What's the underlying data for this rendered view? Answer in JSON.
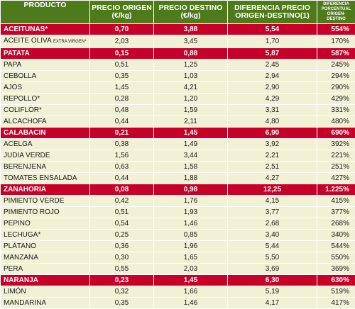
{
  "columns": {
    "producto": "PRODUCTO",
    "precio_origen": "PRECIO ORIGEN (€/kg)",
    "precio_destino": "PRECIO DESTINO (€/kg)",
    "diferencia": "DIFERENCIA PRECIO ORIGEN-DESTINO(1)",
    "diferencia_pct": "DIFERENCIA PORCENTUAL ORIGEN-DESTINO"
  },
  "colors": {
    "header_bg": "#4f7a1b",
    "group_row_bg": "#c7002a",
    "row_bg": "#f1f1d6"
  },
  "rows": [
    {
      "type": "group",
      "producto": "ACEITUNAS*",
      "origen": "0,70",
      "destino": "3,88",
      "diferencia": "5,54",
      "pct": "554%"
    },
    {
      "type": "normal",
      "producto": "ACEITE OLIVA",
      "producto_sub": "EXTRA VIRGEN*",
      "origen": "2,03",
      "destino": "3,45",
      "diferencia": "1,70",
      "pct": "170%"
    },
    {
      "type": "group",
      "producto": "PATATA",
      "origen": "0,15",
      "destino": "0,88",
      "diferencia": "5,87",
      "pct": "587%"
    },
    {
      "type": "normal",
      "producto": "PAPA",
      "origen": "0,51",
      "destino": "1,25",
      "diferencia": "2,45",
      "pct": "245%"
    },
    {
      "type": "normal",
      "producto": "CEBOLLA",
      "origen": "0,35",
      "destino": "1,03",
      "diferencia": "2,94",
      "pct": "294%"
    },
    {
      "type": "normal",
      "producto": "AJOS",
      "origen": "1,45",
      "destino": "4,21",
      "diferencia": "2,90",
      "pct": "290%"
    },
    {
      "type": "normal",
      "producto": "REPOLLO*",
      "origen": "0,28",
      "destino": "1,20",
      "diferencia": "4,29",
      "pct": "429%"
    },
    {
      "type": "normal",
      "producto": "COLIFLOR*",
      "origen": "0,48",
      "destino": "1,59",
      "diferencia": "3,31",
      "pct": "331%"
    },
    {
      "type": "normal",
      "producto": "ALCACHOFA",
      "origen": "0,44",
      "destino": "2,11",
      "diferencia": "4,80",
      "pct": "480%"
    },
    {
      "type": "group",
      "producto": "CALABACIN",
      "origen": "0,21",
      "destino": "1,45",
      "diferencia": "6,90",
      "pct": "690%"
    },
    {
      "type": "normal",
      "producto": "ACELGA",
      "origen": "0,38",
      "destino": "1,49",
      "diferencia": "3,92",
      "pct": "392%"
    },
    {
      "type": "normal",
      "producto": "JUDIA VERDE",
      "origen": "1,56",
      "destino": "3,44",
      "diferencia": "2,21",
      "pct": "221%"
    },
    {
      "type": "normal",
      "producto": "BERENJENA",
      "origen": "0,63",
      "destino": "1,58",
      "diferencia": "2,51",
      "pct": "251%"
    },
    {
      "type": "normal",
      "producto": "TOMATES ENSALADA",
      "origen": "0,44",
      "destino": "1,88",
      "diferencia": "4,27",
      "pct": "427%"
    },
    {
      "type": "group",
      "producto": "ZANAHORIA",
      "origen": "0,08",
      "destino": "0,98",
      "diferencia": "12,25",
      "pct": "1.225%"
    },
    {
      "type": "normal",
      "producto": "PIMIENTO VERDE",
      "origen": "0,42",
      "destino": "1,76",
      "diferencia": "4,15",
      "pct": "415%"
    },
    {
      "type": "normal",
      "producto": "PIMIENTO ROJO",
      "origen": "0,51",
      "destino": "1,93",
      "diferencia": "3,77",
      "pct": "377%"
    },
    {
      "type": "normal",
      "producto": "PEPINO",
      "origen": "0,54",
      "destino": "1,46",
      "diferencia": "2,68",
      "pct": "268%"
    },
    {
      "type": "normal",
      "producto": "LECHUGA*",
      "origen": "0,25",
      "destino": "0,85",
      "diferencia": "3,40",
      "pct": "340%"
    },
    {
      "type": "normal",
      "producto": "PLÁTANO",
      "origen": "0,36",
      "destino": "1,96",
      "diferencia": "5,44",
      "pct": "544%"
    },
    {
      "type": "normal",
      "producto": "MANZANA",
      "origen": "0,30",
      "destino": "1,65",
      "diferencia": "5,50",
      "pct": "550%"
    },
    {
      "type": "normal",
      "producto": "PERA",
      "origen": "0,55",
      "destino": "2,03",
      "diferencia": "3,69",
      "pct": "369%"
    },
    {
      "type": "group",
      "producto": "NARANJA",
      "origen": "0,23",
      "destino": "1,45",
      "diferencia": "6,30",
      "pct": "630%"
    },
    {
      "type": "normal",
      "producto": "LIMÓN",
      "origen": "0,32",
      "destino": "1,66",
      "diferencia": "5,19",
      "pct": "519%"
    },
    {
      "type": "normal",
      "producto": "MANDARINA",
      "origen": "0,35",
      "destino": "1,46",
      "diferencia": "4,17",
      "pct": "417%"
    }
  ]
}
